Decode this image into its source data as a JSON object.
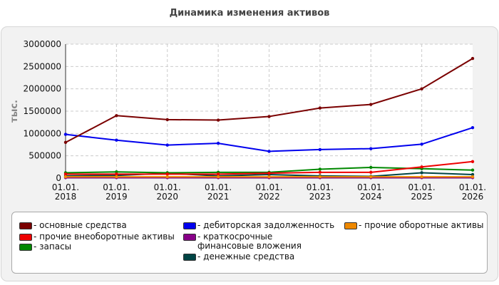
{
  "header": {
    "title": "Динамика изменения активов"
  },
  "chart_data": {
    "type": "line",
    "title": "Динамика изменения активов",
    "ylabel": "тыс.",
    "xlabel": "",
    "x": [
      [
        "01.01.",
        "2018"
      ],
      [
        "01.01.",
        "2019"
      ],
      [
        "01.01.",
        "2020"
      ],
      [
        "01.01.",
        "2021"
      ],
      [
        "01.01.",
        "2022"
      ],
      [
        "01.01.",
        "2023"
      ],
      [
        "01.01.",
        "2024"
      ],
      [
        "01.01.",
        "2025"
      ],
      [
        "01.01.",
        "2026"
      ]
    ],
    "ylim": [
      0,
      3000000
    ],
    "yticks": [
      0,
      500000,
      1000000,
      1500000,
      2000000,
      2500000,
      3000000
    ],
    "ytick_labels": [
      "0",
      "500000",
      "1000000",
      "1500000",
      "2000000",
      "2500000",
      "3000000"
    ],
    "grid": true,
    "legend_position": "bottom",
    "series": [
      {
        "name": "- основные средства",
        "color": "#7a0000",
        "values": [
          800000,
          1400000,
          1310000,
          1300000,
          1380000,
          1570000,
          1650000,
          2000000,
          2680000
        ]
      },
      {
        "name": "- дебиторская задолженность",
        "color": "#0000ee",
        "values": [
          980000,
          850000,
          740000,
          780000,
          600000,
          640000,
          660000,
          760000,
          1130000
        ]
      },
      {
        "name": "- прочие оборотные активы",
        "color": "#ee8800",
        "values": [
          30000,
          30000,
          30000,
          30000,
          30000,
          30000,
          30000,
          30000,
          30000
        ]
      },
      {
        "name": "- прочие внеоборотные активы",
        "color": "#ee0000",
        "values": [
          90000,
          90000,
          90000,
          90000,
          110000,
          130000,
          130000,
          250000,
          370000
        ]
      },
      {
        "name": "- краткосрочные финансовые вложения",
        "color": "#880088",
        "values": [
          10000,
          10000,
          10000,
          10000,
          10000,
          10000,
          10000,
          10000,
          10000
        ]
      },
      {
        "name": "- запасы",
        "color": "#008800",
        "values": [
          120000,
          140000,
          120000,
          130000,
          130000,
          200000,
          240000,
          210000,
          180000
        ]
      },
      {
        "name": "- денежные средства",
        "color": "#004444",
        "values": [
          50000,
          60000,
          110000,
          50000,
          80000,
          50000,
          40000,
          120000,
          80000
        ]
      }
    ]
  }
}
